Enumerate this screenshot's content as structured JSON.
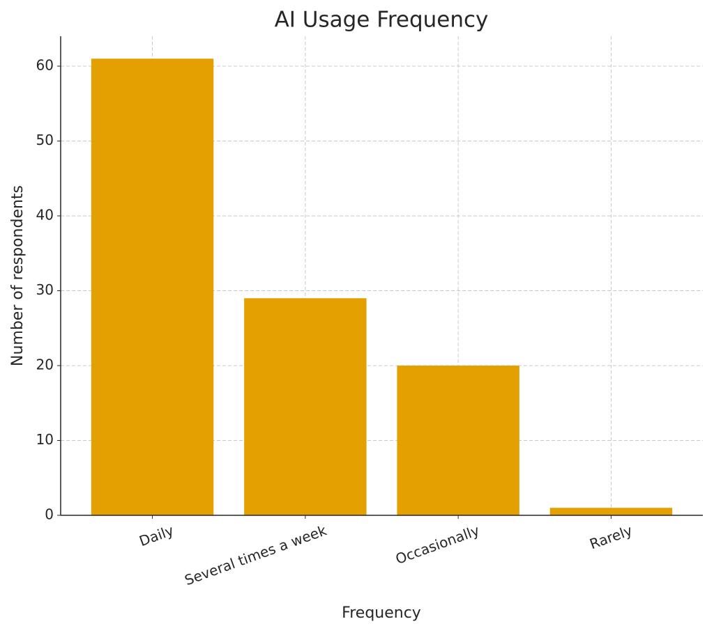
{
  "chart_data": {
    "type": "bar",
    "title": "AI Usage Frequency",
    "x_label": "Frequency",
    "y_label": "Number of respondents",
    "categories": [
      "Daily",
      "Several times a week",
      "Occasionally",
      "Rarely"
    ],
    "values": [
      61,
      29,
      20,
      1
    ],
    "color": "#e3a000",
    "ylim": [
      0,
      64
    ],
    "yticks": [
      0,
      10,
      20,
      30,
      40,
      50,
      60
    ],
    "grid": true
  }
}
